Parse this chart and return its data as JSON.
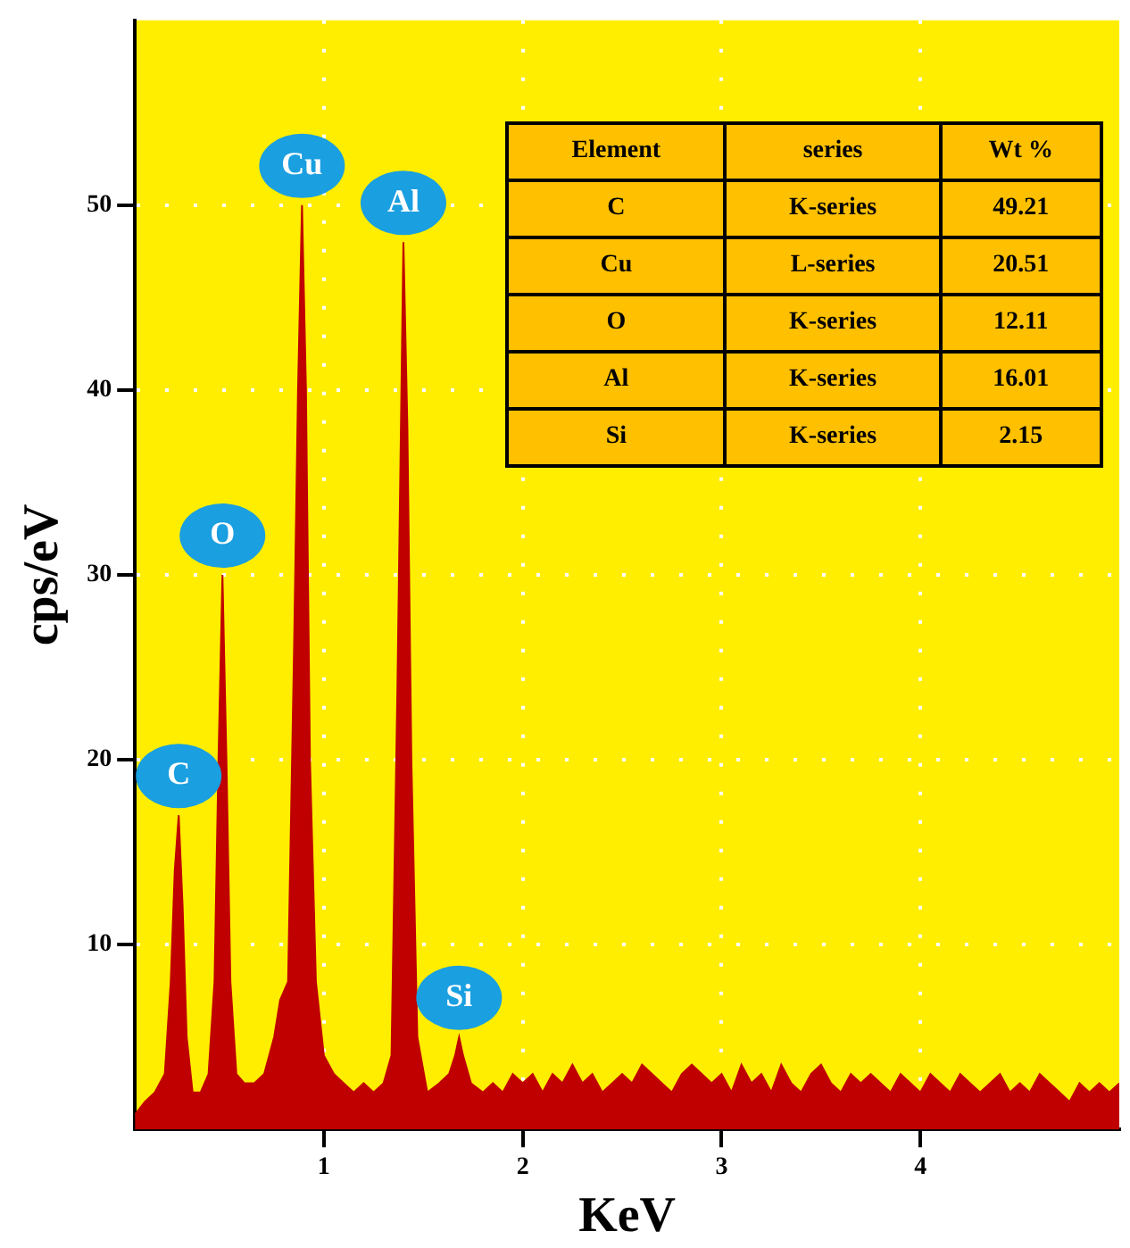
{
  "chart_data": {
    "type": "area",
    "xlabel": "KeV",
    "ylabel": "cps/eV",
    "color": "#c00000",
    "grid": true,
    "x": [
      0.05,
      0.1,
      0.15,
      0.2,
      0.23,
      0.25,
      0.27,
      0.29,
      0.31,
      0.34,
      0.38,
      0.42,
      0.45,
      0.47,
      0.49,
      0.51,
      0.53,
      0.56,
      0.6,
      0.65,
      0.7,
      0.75,
      0.78,
      0.82,
      0.85,
      0.87,
      0.89,
      0.91,
      0.93,
      0.96,
      1.0,
      1.05,
      1.1,
      1.15,
      1.2,
      1.25,
      1.3,
      1.34,
      1.37,
      1.39,
      1.4,
      1.42,
      1.44,
      1.47,
      1.52,
      1.58,
      1.63,
      1.66,
      1.68,
      1.7,
      1.74,
      1.8,
      1.85,
      1.9,
      1.95,
      2.0,
      2.05,
      2.1,
      2.15,
      2.2,
      2.25,
      2.3,
      2.35,
      2.4,
      2.45,
      2.5,
      2.55,
      2.6,
      2.65,
      2.7,
      2.75,
      2.8,
      2.85,
      2.9,
      2.95,
      3.0,
      3.05,
      3.1,
      3.15,
      3.2,
      3.25,
      3.3,
      3.35,
      3.4,
      3.45,
      3.5,
      3.55,
      3.6,
      3.65,
      3.7,
      3.75,
      3.8,
      3.85,
      3.9,
      3.95,
      4.0,
      4.05,
      4.1,
      4.15,
      4.2,
      4.25,
      4.3,
      4.35,
      4.4,
      4.45,
      4.5,
      4.55,
      4.6,
      4.65,
      4.7,
      4.75,
      4.8,
      4.85,
      4.9,
      4.95,
      5.0
    ],
    "values": [
      0.8,
      1.5,
      2,
      3,
      8,
      14,
      17,
      12,
      5,
      2,
      2,
      3,
      8,
      20,
      30,
      20,
      8,
      3,
      2.5,
      2.5,
      3,
      5,
      7,
      8,
      26,
      40,
      50,
      40,
      20,
      8,
      4,
      3,
      2.5,
      2,
      2.5,
      2,
      2.5,
      4,
      24,
      40,
      48,
      38,
      20,
      5,
      2,
      2.5,
      3,
      4,
      5,
      4,
      2.5,
      2,
      2.5,
      2,
      3,
      2.5,
      3,
      2,
      3,
      2.5,
      3.5,
      2.5,
      3,
      2,
      2.5,
      3,
      2.5,
      3.5,
      3,
      2.5,
      2,
      3,
      3.5,
      3,
      2.5,
      3,
      2,
      3.5,
      2.5,
      3,
      2,
      3.5,
      2.5,
      2,
      3,
      3.5,
      2.5,
      2,
      3,
      2.5,
      3,
      2.5,
      2,
      3,
      2.5,
      2,
      3,
      2.5,
      2,
      3,
      2.5,
      2,
      2.5,
      3,
      2,
      2.5,
      2,
      3,
      2.5,
      2,
      1.5,
      2.5,
      2,
      2.5,
      2,
      2.5
    ],
    "xlim": [
      0.05,
      5.0
    ],
    "ylim": [
      0,
      60
    ],
    "xticks": [
      1,
      2,
      3,
      4
    ],
    "yticks": [
      10,
      20,
      30,
      40,
      50
    ],
    "annotations": [
      {
        "text": "C",
        "x": 0.27,
        "y": 17
      },
      {
        "text": "O",
        "x": 0.49,
        "y": 30
      },
      {
        "text": "Cu",
        "x": 0.89,
        "y": 50
      },
      {
        "text": "Al",
        "x": 1.4,
        "y": 48
      },
      {
        "text": "Si",
        "x": 1.68,
        "y": 5
      },
      "Element",
      "series",
      "Wt %",
      "C",
      "K-series",
      "49.21",
      "Cu",
      "L-series",
      "20.51",
      "O",
      "K-series",
      "12.11",
      "Al",
      "K-series",
      "16.01",
      "Si",
      "K-series",
      "2.15"
    ]
  }
}
